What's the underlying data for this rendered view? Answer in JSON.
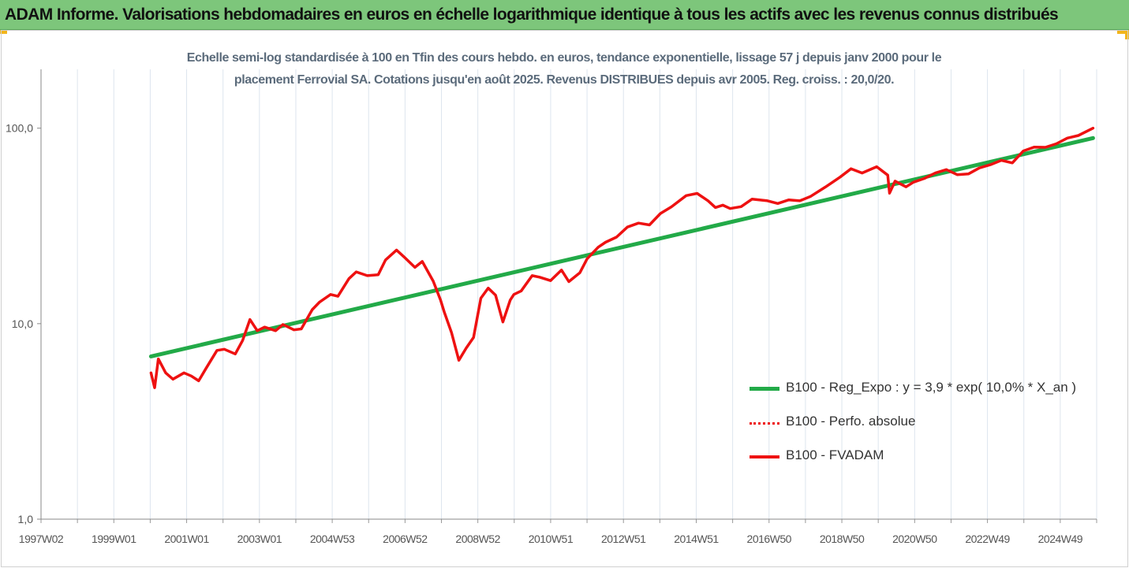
{
  "header": {
    "title": "ADAM Informe. Valorisations hebdomadaires en euros en échelle logarithmique identique à tous les actifs avec les revenus connus distribués"
  },
  "chart_data": {
    "type": "line",
    "subtitle_line1": "Echelle semi-log standardisée à 100 en Tfin des cours hebdo. en euros, tendance exponentielle, lissage 57 j depuis janv 2000 pour le",
    "subtitle_line2": "placement Ferrovial SA. Cotations jusqu'en août 2025. Revenus DISTRIBUES depuis avr 2005. Reg. croiss. : 20,0/20.",
    "y_scale": "log",
    "ylim": [
      1,
      200
    ],
    "y_ticks": [
      "1,0",
      "10,0",
      "100,0"
    ],
    "x_tick_labels": [
      "1997W02",
      "1999W01",
      "2001W01",
      "2003W01",
      "2004W53",
      "2006W52",
      "2008W52",
      "2010W51",
      "2012W51",
      "2014W51",
      "2016W50",
      "2018W50",
      "2020W50",
      "2022W49",
      "2024W49"
    ],
    "xlim": [
      1997.0,
      2025.8
    ],
    "grid": {
      "vertical": true,
      "horizontal": false
    },
    "legend_position": "right",
    "series": [
      {
        "name": "B100 - Reg_Expo : y = 3,9 * exp( 10,0% *  X_an )",
        "color": "#22aa48",
        "style": "solid",
        "x": [
          2000.0,
          2025.7
        ],
        "y": [
          6.8,
          89
        ]
      },
      {
        "name": "B100 - Perfo. absolue",
        "color": "#ee1111",
        "style": "dotted",
        "x": [],
        "y": []
      },
      {
        "name": "B100 - FVADAM",
        "color": "#ee1111",
        "style": "solid",
        "x": [
          2000.0,
          2000.1,
          2000.2,
          2000.4,
          2000.6,
          2000.9,
          2001.1,
          2001.3,
          2001.5,
          2001.8,
          2002.0,
          2002.3,
          2002.5,
          2002.7,
          2002.9,
          2003.1,
          2003.4,
          2003.6,
          2003.9,
          2004.1,
          2004.4,
          2004.6,
          2004.9,
          2005.1,
          2005.4,
          2005.6,
          2005.9,
          2006.2,
          2006.4,
          2006.7,
          2006.9,
          2007.2,
          2007.4,
          2007.7,
          2007.9,
          2008.0,
          2008.2,
          2008.4,
          2008.6,
          2008.8,
          2009.0,
          2009.2,
          2009.4,
          2009.6,
          2009.8,
          2009.9,
          2010.1,
          2010.4,
          2010.6,
          2010.9,
          2011.2,
          2011.4,
          2011.7,
          2011.9,
          2012.2,
          2012.4,
          2012.7,
          2013.0,
          2013.3,
          2013.6,
          2013.9,
          2014.2,
          2014.6,
          2014.9,
          2015.2,
          2015.4,
          2015.6,
          2015.8,
          2016.1,
          2016.4,
          2016.8,
          2017.1,
          2017.4,
          2017.7,
          2018.0,
          2018.4,
          2018.8,
          2019.1,
          2019.4,
          2019.8,
          2020.1,
          2020.15,
          2020.3,
          2020.6,
          2020.8,
          2021.1,
          2021.4,
          2021.7,
          2022.0,
          2022.3,
          2022.6,
          2022.9,
          2023.2,
          2023.5,
          2023.8,
          2024.1,
          2024.4,
          2024.7,
          2025.0,
          2025.3,
          2025.7
        ],
        "y": [
          5.6,
          4.7,
          6.6,
          5.6,
          5.2,
          5.6,
          5.4,
          5.1,
          5.9,
          7.3,
          7.4,
          7.0,
          8.2,
          10.5,
          9.2,
          9.6,
          9.2,
          9.9,
          9.3,
          9.4,
          11.8,
          12.9,
          14.1,
          13.8,
          17.0,
          18.4,
          17.6,
          17.8,
          21.2,
          23.8,
          22.0,
          19.4,
          20.8,
          16.5,
          13.2,
          11.5,
          9.0,
          6.5,
          7.5,
          8.5,
          13.5,
          15.2,
          14.0,
          10.2,
          13.2,
          14.1,
          14.7,
          17.6,
          17.3,
          16.6,
          18.8,
          16.4,
          18.2,
          21.5,
          24.6,
          26.1,
          27.7,
          31.2,
          32.7,
          32.0,
          36.6,
          39.6,
          45.2,
          46.4,
          42.5,
          39.3,
          40.4,
          38.8,
          39.7,
          43.4,
          42.6,
          41.2,
          43.0,
          42.5,
          44.8,
          50.0,
          56.2,
          62.0,
          59.0,
          63.5,
          57.5,
          46.5,
          53.6,
          50.1,
          52.9,
          55.3,
          59.0,
          61.4,
          57.8,
          58.3,
          62.6,
          65.0,
          68.5,
          66.4,
          76.5,
          80.0,
          79.8,
          83.2,
          89.0,
          91.7,
          100.0
        ]
      }
    ]
  }
}
